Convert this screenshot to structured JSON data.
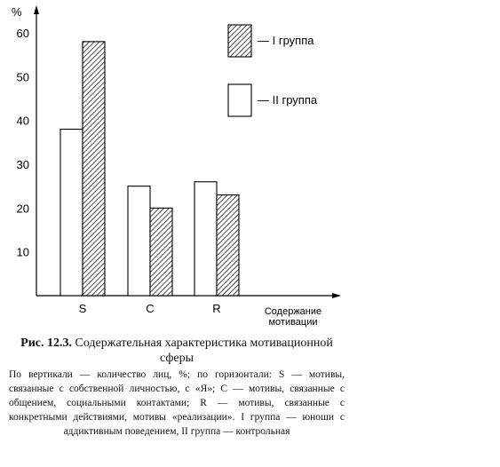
{
  "chart_data": {
    "type": "bar",
    "ylabel": "%",
    "xlabel": "Содержание мотивации",
    "categories": [
      "S",
      "C",
      "R"
    ],
    "yticks": [
      10,
      20,
      30,
      40,
      50,
      60
    ],
    "ylim": [
      0,
      65
    ],
    "grid": false,
    "legend_position": "top-right",
    "series": [
      {
        "name": "— II группа",
        "fill": "white",
        "values": [
          38,
          25,
          26
        ]
      },
      {
        "name": "— I группа",
        "fill": "hatched",
        "values": [
          58,
          20,
          23
        ]
      }
    ],
    "legend_order": [
      1,
      0
    ]
  },
  "caption": {
    "label": "Рис. 12.3.",
    "title": "Содержательная характеристика мотивационной сферы",
    "description": "По вертикали — количество лиц, %; по горизонтали: S — мотивы, связанные с собственной личностью, с «Я»; C — мотивы, связанные с общением, социальными контактами; R — мотивы, связанные с конкретными действиями, мотивы «реализации». I группа — юноши с аддиктивным поведением, II группа — контрольная"
  }
}
